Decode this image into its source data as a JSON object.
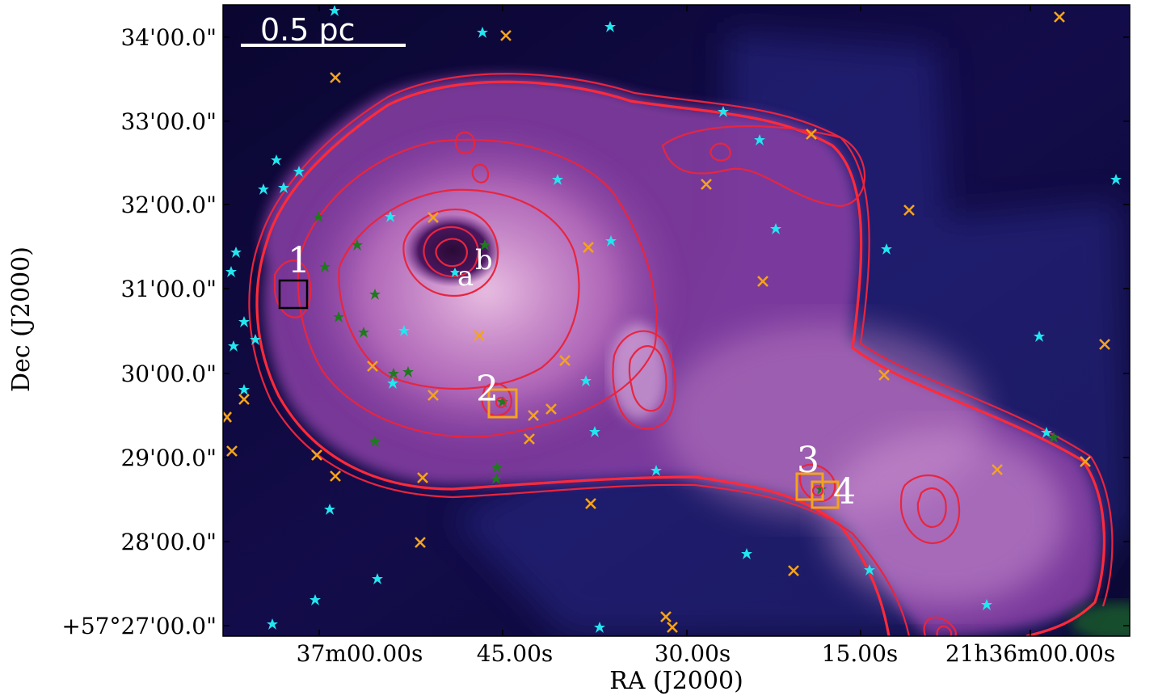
{
  "axes": {
    "xlabel": "RA (J2000)",
    "ylabel": "Dec (J2000)",
    "x_ticks": [
      "37m00.00s",
      "45.00s",
      "30.00s",
      "15.00s",
      "21h36m00.00s"
    ],
    "y_ticks": [
      "34'00.0\"",
      "33'00.0\"",
      "32'00.0\"",
      "31'00.0\"",
      "30'00.0\"",
      "29'00.0\"",
      "28'00.0\"",
      "+57°27'00.0\""
    ]
  },
  "scale_bar": {
    "label": "0.5 pc"
  },
  "sources": [
    {
      "label": "1"
    },
    {
      "label": "2"
    },
    {
      "label": "3"
    },
    {
      "label": "4"
    }
  ],
  "sub_labels": {
    "a": "a",
    "b": "b"
  },
  "colors": {
    "contour": "#e8253f",
    "cyan_star": "#22e6f0",
    "green_star": "#1f7a1f",
    "orange_cross": "#f5a31a",
    "box_orange": "#f5a31a",
    "box_black": "#000000"
  },
  "marker_names": [
    "cyan-star-icon",
    "green-star-icon",
    "orange-cross-icon"
  ]
}
